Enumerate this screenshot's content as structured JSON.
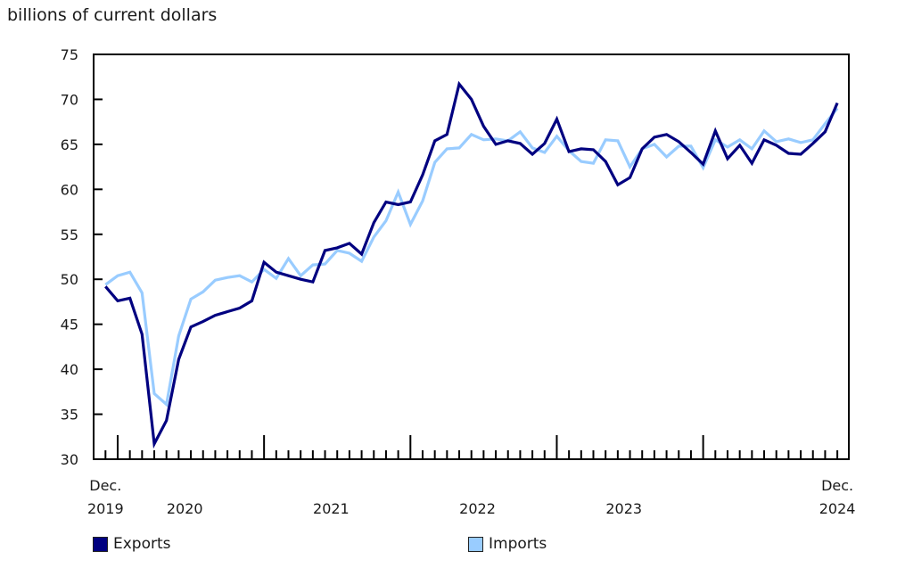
{
  "chart_data": {
    "type": "line",
    "title": "",
    "ylabel": "billions of current dollars",
    "xlabel": "",
    "ylim": [
      30,
      75
    ],
    "yticks": [
      30,
      35,
      40,
      45,
      50,
      55,
      60,
      65,
      70,
      75
    ],
    "grid": false,
    "legend_position": "bottom",
    "x_start": "Dec. 2019",
    "x_end": "Dec. 2024",
    "x_tick_labels": [
      {
        "line1": "Dec.",
        "line2": "2019",
        "index": 0
      },
      {
        "line1": "",
        "line2": "2020",
        "index": 6.5
      },
      {
        "line1": "",
        "line2": "2021",
        "index": 18.5
      },
      {
        "line1": "",
        "line2": "2022",
        "index": 30.5
      },
      {
        "line1": "",
        "line2": "2023",
        "index": 42.5
      },
      {
        "line1": "Dec.",
        "line2": "2024",
        "index": 60
      }
    ],
    "series": [
      {
        "name": "Exports",
        "color": "#000080",
        "values": [
          49.2,
          47.6,
          47.9,
          43.9,
          31.7,
          34.3,
          41.1,
          44.7,
          45.3,
          46.0,
          46.4,
          46.8,
          47.6,
          51.9,
          50.8,
          50.4,
          50.0,
          49.7,
          53.2,
          53.5,
          54.0,
          52.8,
          56.3,
          58.6,
          58.3,
          58.6,
          61.6,
          65.4,
          66.1,
          71.7,
          70.0,
          67.0,
          65.0,
          65.4,
          65.1,
          63.9,
          65.1,
          67.8,
          64.2,
          64.5,
          64.4,
          63.1,
          60.5,
          61.3,
          64.5,
          65.8,
          66.1,
          65.3,
          64.1,
          62.8,
          66.5,
          63.4,
          64.9,
          62.9,
          65.5,
          64.9,
          64.0,
          63.9,
          65.1,
          66.4,
          69.6
        ]
      },
      {
        "name": "Imports",
        "color": "#99ccff",
        "values": [
          49.4,
          50.4,
          50.8,
          48.5,
          37.3,
          36.1,
          43.7,
          47.8,
          48.6,
          49.9,
          50.2,
          50.4,
          49.7,
          51.1,
          50.1,
          52.3,
          50.4,
          51.6,
          51.7,
          53.2,
          52.9,
          52.0,
          54.7,
          56.5,
          59.7,
          56.1,
          58.7,
          63.0,
          64.5,
          64.6,
          66.1,
          65.5,
          65.6,
          65.4,
          66.4,
          64.6,
          64.1,
          65.9,
          64.3,
          63.1,
          62.9,
          65.5,
          65.4,
          62.5,
          64.5,
          65.0,
          63.6,
          64.8,
          64.8,
          62.4,
          65.5,
          64.7,
          65.5,
          64.5,
          66.5,
          65.3,
          65.6,
          65.2,
          65.5,
          67.3,
          69.0
        ]
      }
    ]
  },
  "unit_label": "billions of current dollars",
  "legend": {
    "items": [
      {
        "label": "Exports",
        "color": "#000080"
      },
      {
        "label": "Imports",
        "color": "#99ccff"
      }
    ]
  }
}
